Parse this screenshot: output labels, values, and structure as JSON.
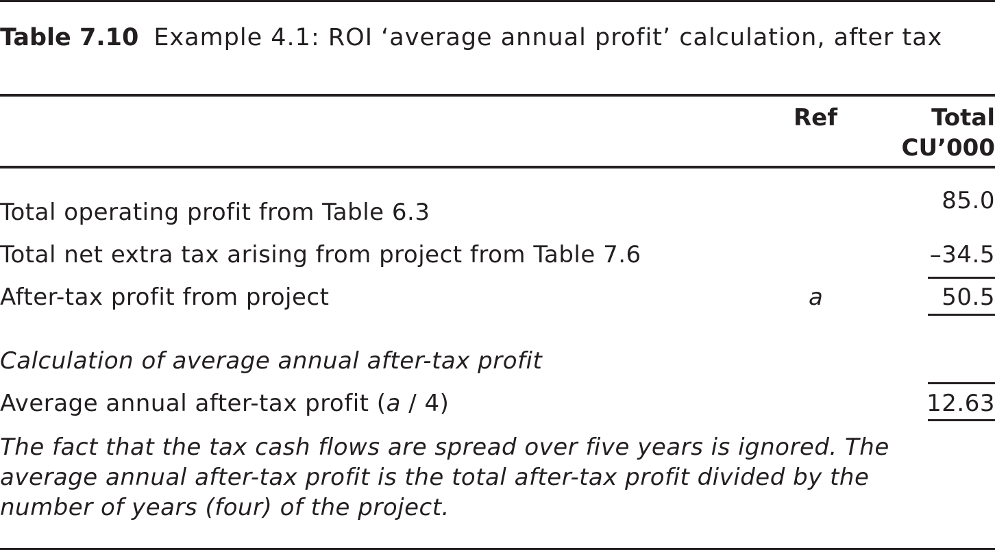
{
  "caption": {
    "label": "Table 7.10",
    "title": "Example 4.1: ROI ‘average annual profit’ calculation, after tax"
  },
  "header": {
    "ref": "Ref",
    "total_line1": "Total",
    "total_line2": "CU’000"
  },
  "rows": [
    {
      "label": "Total operating profit from Table 6.3",
      "ref": "",
      "value": "85.0"
    },
    {
      "label": "Total net extra tax arising from project from Table 7.6",
      "ref": "",
      "value": "–34.5"
    },
    {
      "label": "After-tax profit from project",
      "ref": "a",
      "value": "50.5"
    }
  ],
  "section_heading": "Calculation of average annual after-tax profit",
  "average_row": {
    "label_before": "Average annual after-tax profit (",
    "label_ref": "a",
    "label_after": " / 4)",
    "value": "12.63"
  },
  "note": "The fact that the tax cash flows are spread over five years is ignored. The average annual after-tax profit is the total after-tax profit divided by the number of years (four) of the project."
}
